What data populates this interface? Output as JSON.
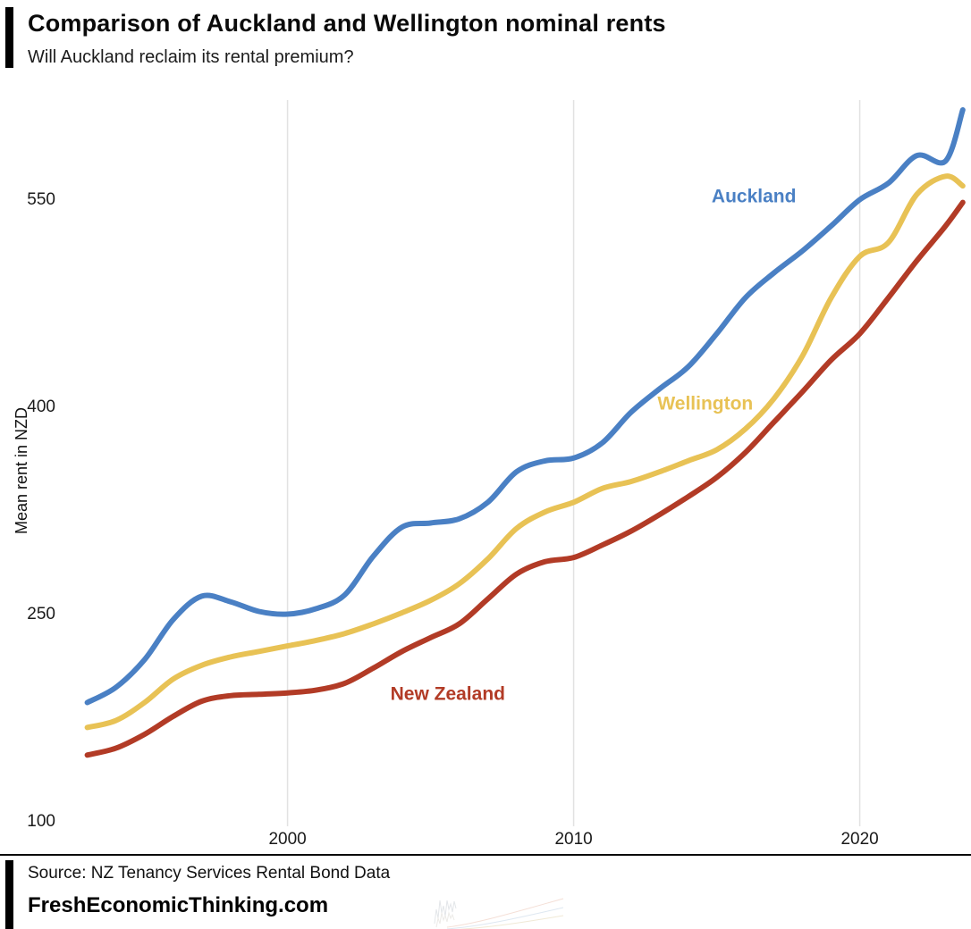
{
  "header": {
    "title": "Comparison of Auckland and Wellington nominal rents",
    "subtitle": "Will Auckland reclaim its rental premium?"
  },
  "chart_data": {
    "type": "line",
    "title": "Comparison of Auckland and Wellington nominal rents",
    "subtitle": "Will Auckland reclaim its rental premium?",
    "xlabel": "",
    "ylabel": "Mean rent in NZD",
    "grid": "vertical-only",
    "legend_position": "inline-labels",
    "x_ticks": [
      2000,
      2010,
      2020
    ],
    "y_ticks": [
      100,
      250,
      400,
      550
    ],
    "x_range": [
      1992.7,
      2023.7
    ],
    "y_range": [
      100,
      625
    ],
    "x": [
      1993,
      1994,
      1995,
      1996,
      1997,
      1998,
      1999,
      2000,
      2001,
      2002,
      2003,
      2004,
      2005,
      2006,
      2007,
      2008,
      2009,
      2010,
      2011,
      2012,
      2013,
      2014,
      2015,
      2016,
      2017,
      2018,
      2019,
      2020,
      2021,
      2022,
      2023,
      2023.6
    ],
    "series": [
      {
        "name": "New Zealand",
        "color": "#b23b26",
        "values": [
          147,
          152,
          162,
          175,
          186,
          190,
          191,
          192,
          194,
          199,
          210,
          222,
          232,
          242,
          260,
          278,
          287,
          290,
          299,
          309,
          321,
          334,
          348,
          366,
          388,
          410,
          433,
          452,
          478,
          505,
          530,
          547
        ],
        "label_at": {
          "x": 2005.6,
          "y": 187
        }
      },
      {
        "name": "Wellington",
        "color": "#e8c255",
        "values": [
          167,
          172,
          185,
          202,
          212,
          218,
          222,
          226,
          230,
          235,
          242,
          250,
          259,
          271,
          289,
          311,
          323,
          330,
          340,
          345,
          352,
          360,
          368,
          383,
          405,
          436,
          478,
          508,
          518,
          553,
          566,
          559
        ],
        "label_at": {
          "x": 2014.6,
          "y": 397
        }
      },
      {
        "name": "Auckland",
        "color": "#4a80c4",
        "values": [
          185,
          196,
          216,
          245,
          262,
          258,
          251,
          249,
          253,
          263,
          291,
          312,
          315,
          318,
          330,
          352,
          360,
          362,
          373,
          395,
          412,
          428,
          452,
          478,
          496,
          512,
          530,
          549,
          561,
          581,
          577,
          614
        ],
        "label_at": {
          "x": 2016.3,
          "y": 547
        }
      }
    ]
  },
  "footer": {
    "source": "Source: NZ Tenancy Services Rental Bond Data",
    "site": "FreshEconomicThinking.com"
  }
}
